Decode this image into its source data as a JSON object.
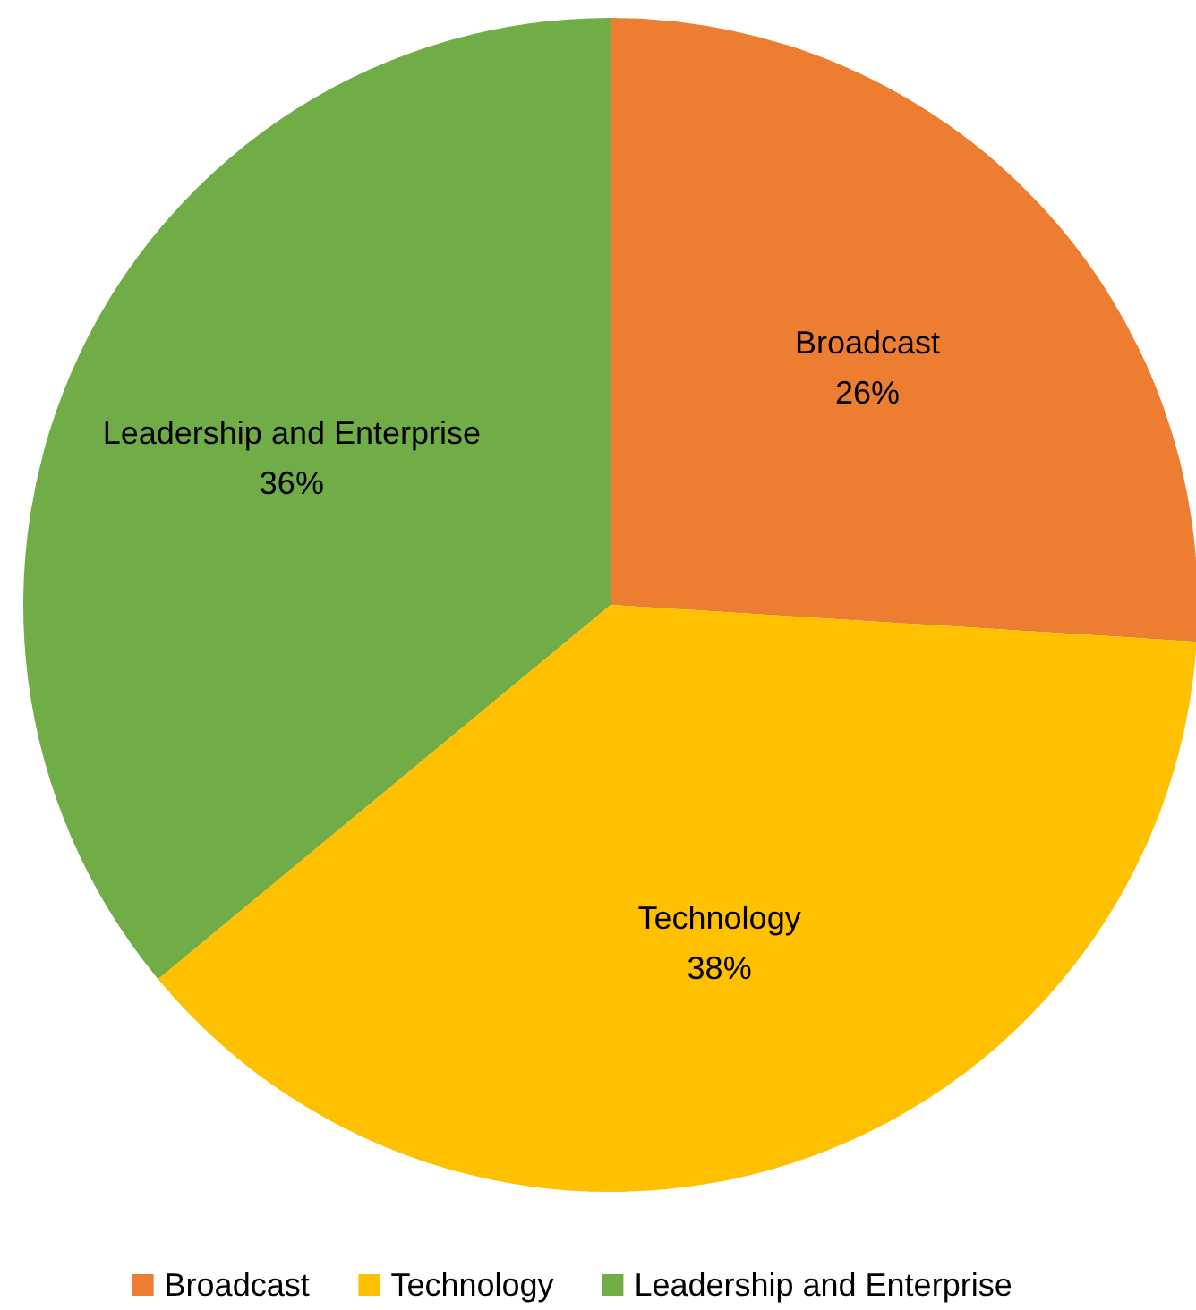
{
  "chart_data": {
    "type": "pie",
    "categories": [
      "Broadcast",
      "Technology",
      "Leadership and Enterprise"
    ],
    "values": [
      26,
      38,
      36
    ],
    "colors": [
      "#ed7d31",
      "#ffc000",
      "#70ad47"
    ],
    "value_labels": [
      "26%",
      "38%",
      "36%"
    ],
    "legend": "bottom"
  }
}
